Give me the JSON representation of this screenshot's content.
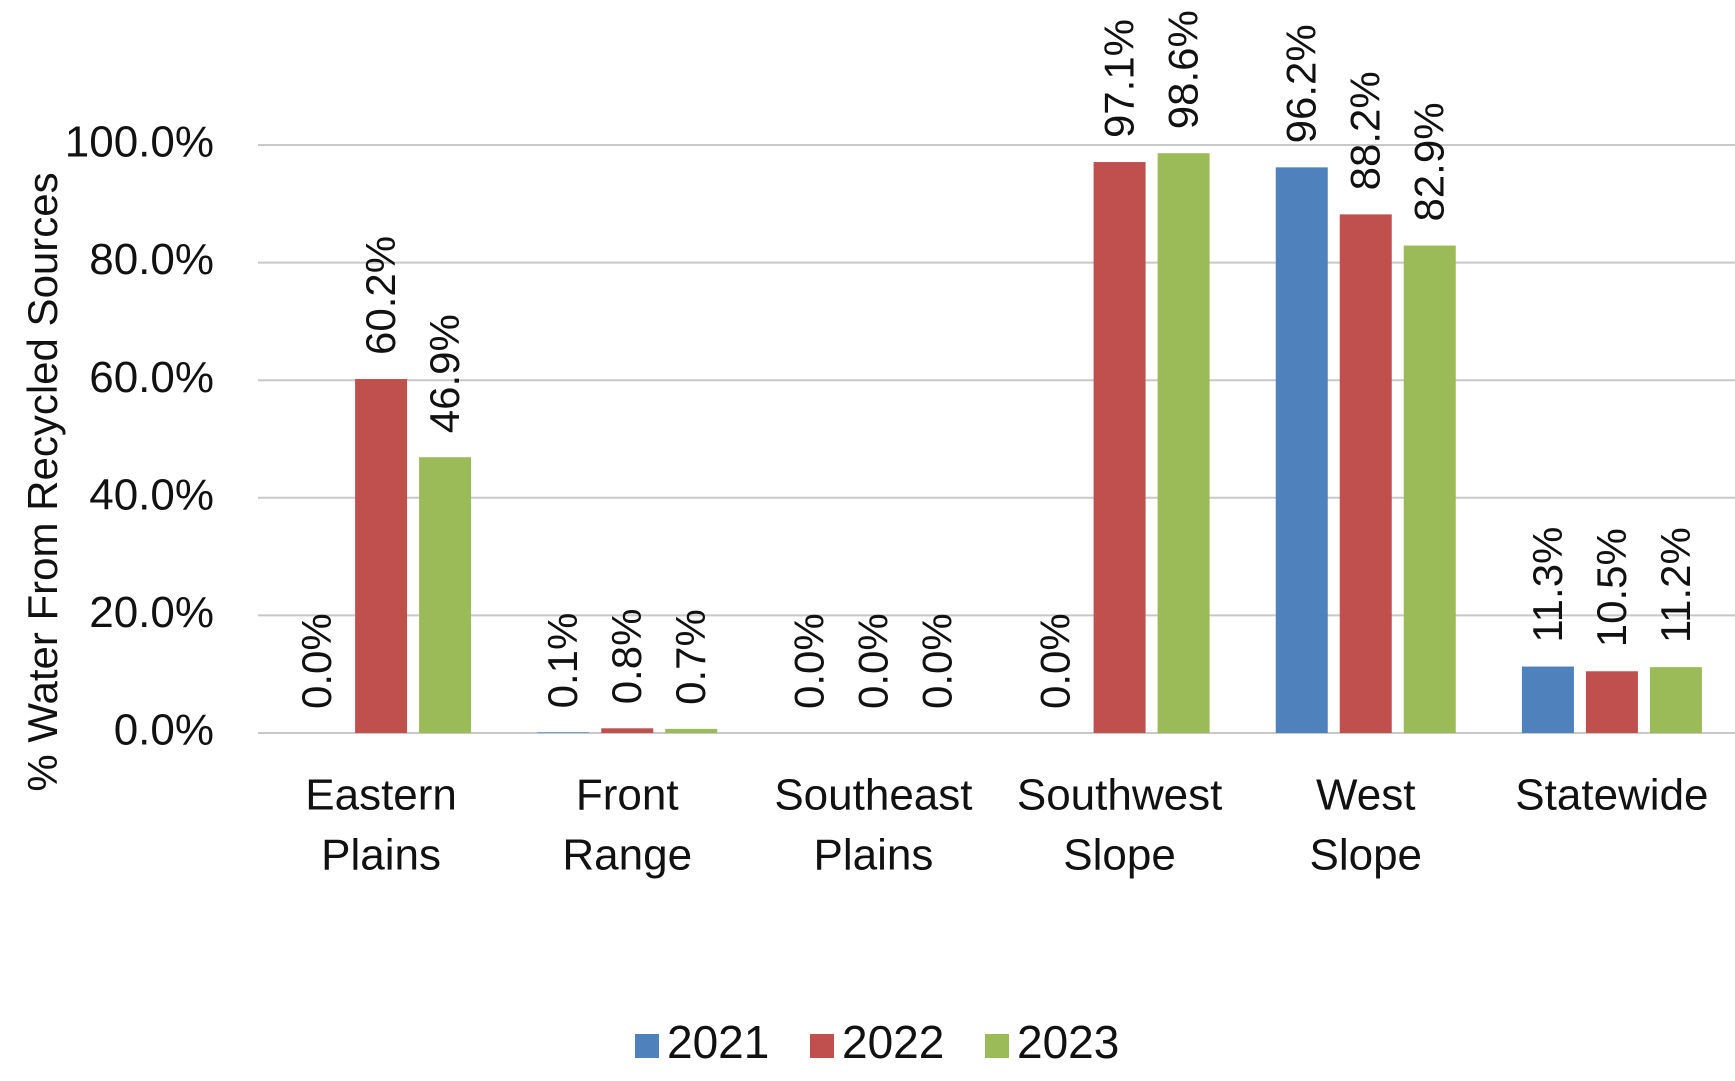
{
  "chart_data": {
    "type": "bar",
    "ylabel": "%  Water From Recycled Sources",
    "ylim": [
      0,
      100
    ],
    "y_ticks": [
      "0.0%",
      "20.0%",
      "40.0%",
      "60.0%",
      "80.0%",
      "100.0%"
    ],
    "y_tick_values": [
      0,
      20,
      40,
      60,
      80,
      100
    ],
    "categories": [
      [
        "Eastern",
        "Plains"
      ],
      [
        "Front",
        "Range"
      ],
      [
        "Southeast",
        "Plains"
      ],
      [
        "Southwest",
        "Slope"
      ],
      [
        "West",
        "Slope"
      ],
      [
        "Statewide"
      ]
    ],
    "series": [
      {
        "name": "2021",
        "color": "#4f81bd",
        "values": [
          0.0,
          0.1,
          0.0,
          0.0,
          96.2,
          11.3
        ],
        "labels": [
          "0.0%",
          "0.1%",
          "0.0%",
          "0.0%",
          "96.2%",
          "11.3%"
        ]
      },
      {
        "name": "2022",
        "color": "#c0504d",
        "values": [
          60.2,
          0.8,
          0.0,
          97.1,
          88.2,
          10.5
        ],
        "labels": [
          "60.2%",
          "0.8%",
          "0.0%",
          "97.1%",
          "88.2%",
          "10.5%"
        ]
      },
      {
        "name": "2023",
        "color": "#9bbb59",
        "values": [
          46.9,
          0.7,
          0.0,
          98.6,
          82.9,
          11.2
        ],
        "labels": [
          "46.9%",
          "0.7%",
          "0.0%",
          "98.6%",
          "82.9%",
          "11.2%"
        ]
      }
    ],
    "grid": true,
    "legend_position": "bottom"
  }
}
